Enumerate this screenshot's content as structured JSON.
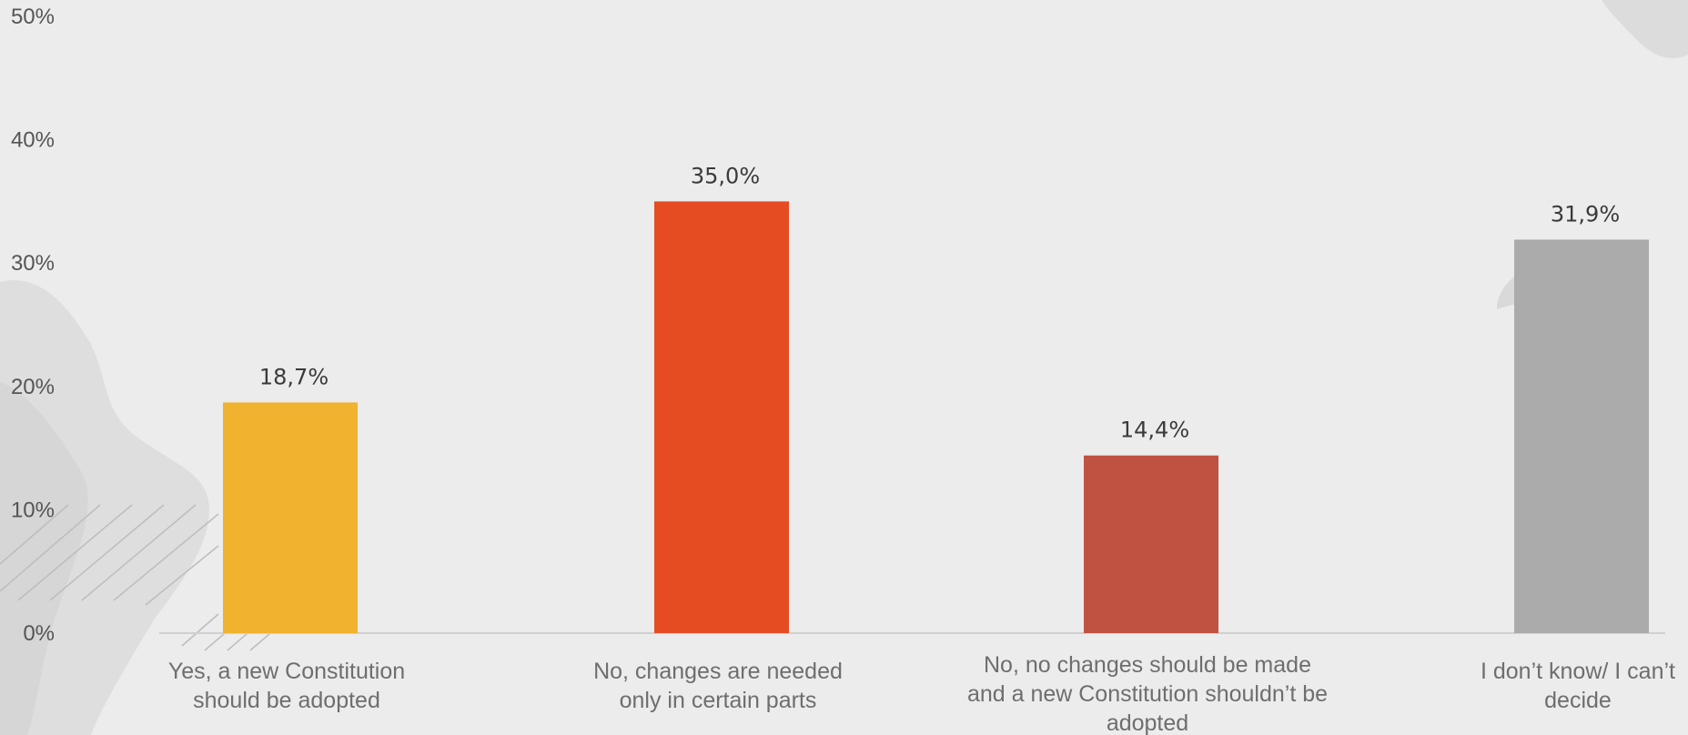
{
  "chart_data": {
    "type": "bar",
    "categories": [
      [
        "Yes, a new Constitution",
        "should be adopted"
      ],
      [
        "No, changes are needed",
        "only in certain parts"
      ],
      [
        "No, no changes should be made",
        "and a new Constitution shouldn’t be",
        "adopted"
      ],
      [
        "I don’t know/ I can’t",
        "decide"
      ]
    ],
    "values": [
      18.7,
      35.0,
      14.4,
      31.9
    ],
    "value_labels": [
      "18,7%",
      "35,0%",
      "14,4%",
      "31,9%"
    ],
    "bar_colors": [
      "#f0b22f",
      "#e64c22",
      "#c05241",
      "#ababab"
    ],
    "yticks": [
      0,
      10,
      20,
      30,
      40,
      50
    ],
    "ytick_labels": [
      "0%",
      "10%",
      "20%",
      "30%",
      "40%",
      "50%"
    ],
    "ylim": [
      0,
      50
    ],
    "grid": false,
    "legend": "none"
  }
}
